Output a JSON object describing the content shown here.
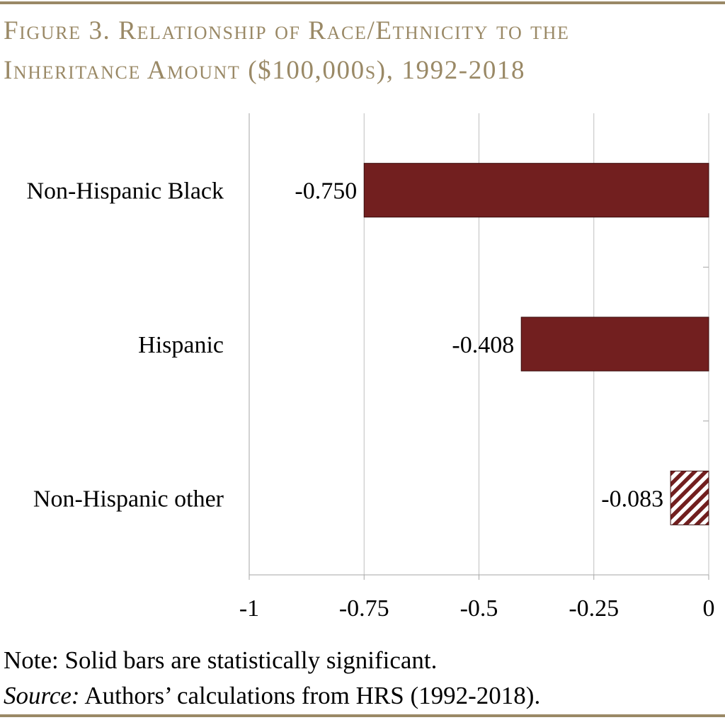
{
  "figure": {
    "title_line1": "Figure 3. Relationship of Race/Ethnicity to the",
    "title_line2": "Inheritance Amount ($100,000s), 1992-2018",
    "title_color": "#9a8966"
  },
  "chart_data": {
    "type": "bar",
    "orientation": "horizontal",
    "categories": [
      "Non-Hispanic Black",
      "Hispanic",
      "Non-Hispanic other"
    ],
    "values": [
      -0.75,
      -0.408,
      -0.083
    ],
    "value_labels": [
      "-0.750",
      "-0.408",
      "-0.083"
    ],
    "statistically_significant": [
      true,
      true,
      false
    ],
    "bar_fill": [
      "solid",
      "solid",
      "hatched"
    ],
    "bar_color": "#721f1f",
    "xlim": [
      -1,
      0
    ],
    "xticks": [
      -1,
      -0.75,
      -0.5,
      -0.25,
      0
    ],
    "xtick_labels": [
      "-1",
      "-0.75",
      "-0.5",
      "-0.25",
      "0"
    ],
    "vertical_gridlines": true,
    "legend": "none"
  },
  "notes": {
    "note_text": "Note: Solid bars are statistically significant.",
    "source_label": "Source:",
    "source_text": " Authors’ calculations from HRS (1992-2018)."
  }
}
